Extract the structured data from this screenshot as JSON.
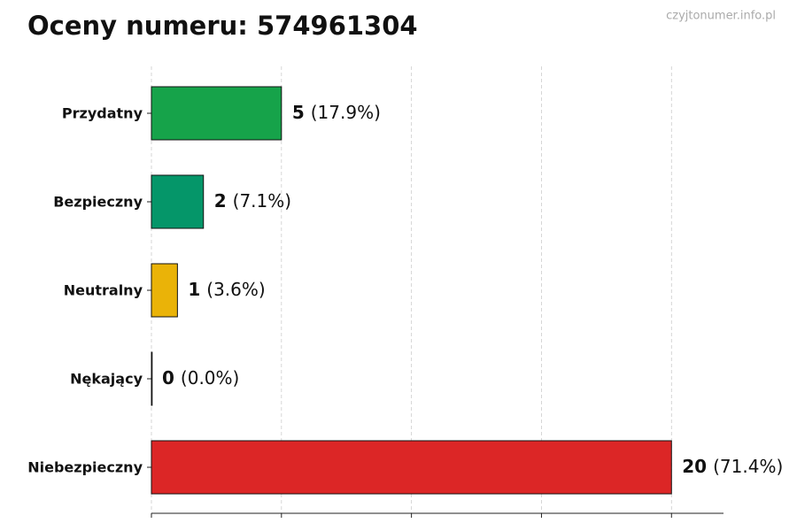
{
  "chart_data": {
    "type": "barh",
    "title": "Oceny numeru: 574961304",
    "watermark": "czyjtonumer.info.pl",
    "categories": [
      "Przydatny",
      "Bezpieczny",
      "Neutralny",
      "Nękający",
      "Niebezpieczny"
    ],
    "values": [
      5,
      2,
      1,
      0,
      20
    ],
    "colors": [
      "#16a34a",
      "#059669",
      "#eab308",
      "#6b7280",
      "#dc2626"
    ],
    "shares": [
      17.9,
      7.1,
      3.6,
      0.0,
      71.4
    ],
    "share_labels": [
      "(17.9%)",
      "(7.1%)",
      "(3.6%)",
      "(0.0%)",
      "(71.4%)"
    ],
    "xlim": [
      0,
      22
    ],
    "xticks": [
      0,
      5,
      10,
      15,
      20
    ],
    "grid": true
  }
}
